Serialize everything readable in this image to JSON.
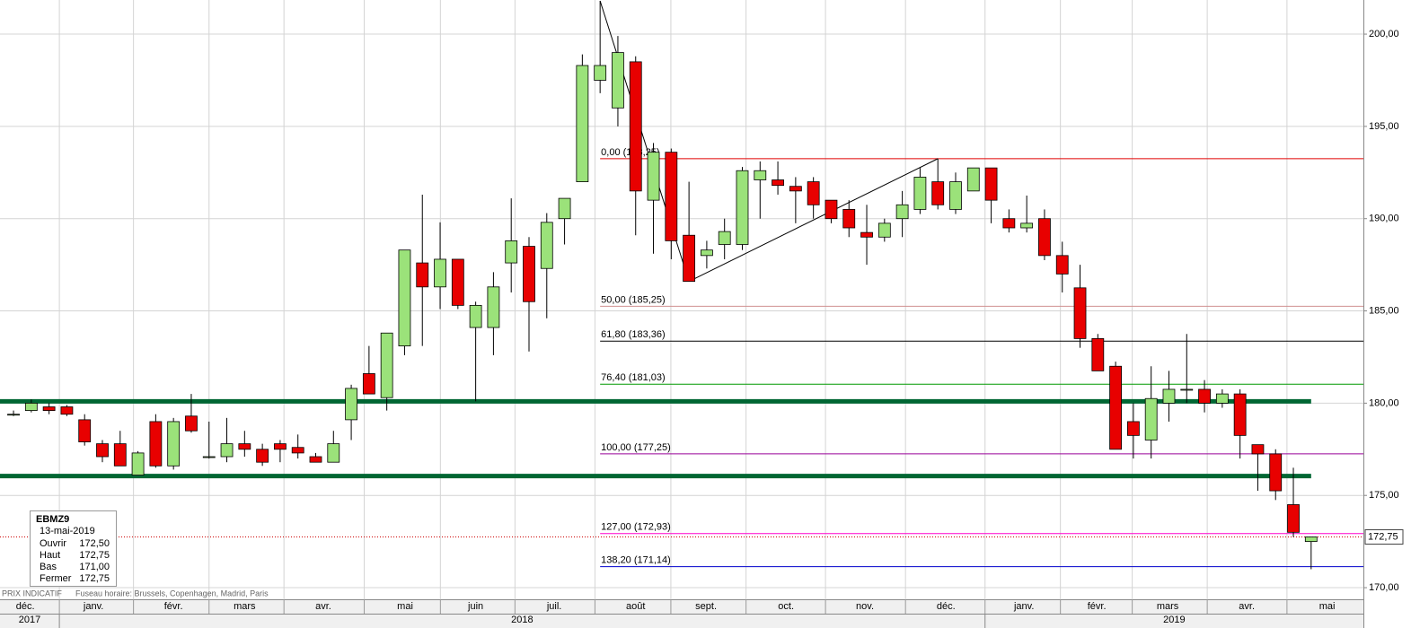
{
  "chart_data": {
    "type": "candlestick",
    "open": [
      179.4,
      179.6,
      179.8,
      179.8,
      179.1,
      177.8,
      177.8,
      176.1,
      179.0,
      176.6,
      179.3,
      177.1,
      177.1,
      177.8,
      177.5,
      177.8,
      177.6,
      177.1,
      176.8,
      179.1,
      181.6,
      180.3,
      183.1,
      187.6,
      186.3,
      187.8,
      184.1,
      184.1,
      187.6,
      188.5,
      187.3,
      190.0,
      192.0,
      197.5,
      196.0,
      198.5,
      191.0,
      193.6,
      189.1,
      188.0,
      188.6,
      188.6,
      192.1,
      192.1,
      191.75,
      192.0,
      191.0,
      190.5,
      189.25,
      189.0,
      190.0,
      190.5,
      192.0,
      190.5,
      191.5,
      192.75,
      190.0,
      189.5,
      190.0,
      188.0,
      186.25,
      183.5,
      182.0,
      179.0,
      178.0,
      180.0,
      180.75,
      180.75,
      180.0,
      180.5,
      177.75,
      177.25,
      174.5,
      172.5
    ],
    "high": [
      179.6,
      180.2,
      180.0,
      179.9,
      179.4,
      178.0,
      178.5,
      177.4,
      179.4,
      179.2,
      180.5,
      179.0,
      179.2,
      178.5,
      177.8,
      178.0,
      178.3,
      177.3,
      178.5,
      181.0,
      183.1,
      183.8,
      188.3,
      191.3,
      189.8,
      187.8,
      185.5,
      187.1,
      191.1,
      189.0,
      190.3,
      191.1,
      198.9,
      201.8,
      199.9,
      198.8,
      194.1,
      193.8,
      192.0,
      188.8,
      190.0,
      192.8,
      193.1,
      193.1,
      192.25,
      192.25,
      191.0,
      191.0,
      190.75,
      190.0,
      191.5,
      192.75,
      193.25,
      192.5,
      192.75,
      192.75,
      190.5,
      191.25,
      190.5,
      188.75,
      187.5,
      183.75,
      182.25,
      180.0,
      182.0,
      181.75,
      183.75,
      181.25,
      180.75,
      180.75,
      177.75,
      177.5,
      176.5,
      172.75
    ],
    "low": [
      179.3,
      179.5,
      179.4,
      179.3,
      177.7,
      176.8,
      176.6,
      176.1,
      176.5,
      176.4,
      178.4,
      177.0,
      176.8,
      177.1,
      176.6,
      176.8,
      177.0,
      176.8,
      176.8,
      178.0,
      180.5,
      179.6,
      182.6,
      183.1,
      185.1,
      185.1,
      180.1,
      182.6,
      186.0,
      182.8,
      184.6,
      188.6,
      192.0,
      196.8,
      195.0,
      189.1,
      188.1,
      187.8,
      186.6,
      187.3,
      187.8,
      188.3,
      190.0,
      191.3,
      189.75,
      190.0,
      189.75,
      189.0,
      187.5,
      188.75,
      189.0,
      190.25,
      190.5,
      190.25,
      191.5,
      189.75,
      189.25,
      189.25,
      187.75,
      186.0,
      183.0,
      181.75,
      177.5,
      177.0,
      177.0,
      179.0,
      180.0,
      179.5,
      179.75,
      177.0,
      175.25,
      174.75,
      172.75,
      171.0
    ],
    "close": [
      179.4,
      180.0,
      179.6,
      179.4,
      177.9,
      177.1,
      176.6,
      177.3,
      176.6,
      179.0,
      178.5,
      177.1,
      177.8,
      177.5,
      176.8,
      177.5,
      177.3,
      176.8,
      177.8,
      180.8,
      180.5,
      183.8,
      188.3,
      186.3,
      187.8,
      185.3,
      185.3,
      186.3,
      188.8,
      185.5,
      189.8,
      191.1,
      198.3,
      198.3,
      199.0,
      191.5,
      193.6,
      188.8,
      186.6,
      188.3,
      189.3,
      192.6,
      192.6,
      191.8,
      191.5,
      190.75,
      190.0,
      189.5,
      189.0,
      189.75,
      190.75,
      192.25,
      190.75,
      192.0,
      192.75,
      191.0,
      189.5,
      189.75,
      188.0,
      187.0,
      183.5,
      181.75,
      177.5,
      178.25,
      180.25,
      180.75,
      180.75,
      180.0,
      180.5,
      178.25,
      177.25,
      175.25,
      173.0,
      172.75
    ],
    "up_color": "#9be27a",
    "down_color": "#e80000",
    "xlim": [
      -0.76,
      75.94
    ],
    "ylim": [
      169.37,
      201.85
    ],
    "yticks": [
      {
        "value": 170,
        "label": "170,00"
      },
      {
        "value": 175,
        "label": "175,00"
      },
      {
        "value": 180,
        "label": "180,00"
      },
      {
        "value": 185,
        "label": "185,00"
      },
      {
        "value": 190,
        "label": "190,00"
      },
      {
        "value": 195,
        "label": "195,00"
      },
      {
        "value": 200,
        "label": "200,00"
      }
    ],
    "xticks": [
      {
        "value": 0.66,
        "label": "déc."
      },
      {
        "value": 4.5,
        "label": "janv."
      },
      {
        "value": 9.0,
        "label": "févr."
      },
      {
        "value": 13.0,
        "label": "mars"
      },
      {
        "value": 17.43,
        "label": "avr."
      },
      {
        "value": 22.03,
        "label": "mai"
      },
      {
        "value": 26.0,
        "label": "juin"
      },
      {
        "value": 30.42,
        "label": "juil."
      },
      {
        "value": 35.0,
        "label": "août"
      },
      {
        "value": 38.96,
        "label": "sept."
      },
      {
        "value": 43.46,
        "label": "oct."
      },
      {
        "value": 47.9,
        "label": "nov."
      },
      {
        "value": 52.46,
        "label": "déc."
      },
      {
        "value": 56.85,
        "label": "janv."
      },
      {
        "value": 60.94,
        "label": "févr."
      },
      {
        "value": 64.93,
        "label": "mars"
      },
      {
        "value": 69.38,
        "label": "avr."
      },
      {
        "value": 73.9,
        "label": "mai"
      }
    ],
    "years": [
      "2017",
      "2018",
      "2019"
    ],
    "grid": true,
    "fib_levels": [
      {
        "label": "0,00 (193,25)",
        "value": 193.25,
        "color": "#e00000"
      },
      {
        "label": "50,00 (185,25)",
        "value": 185.25,
        "color": "#d09090"
      },
      {
        "label": "61,80 (183,36)",
        "value": 183.36,
        "color": "#000000"
      },
      {
        "label": "76,40 (181,03)",
        "value": 181.03,
        "color": "#009900"
      },
      {
        "label": "100,00 (177,25)",
        "value": 177.25,
        "color": "#990099"
      },
      {
        "label": "127,00 (172,93)",
        "value": 172.93,
        "color": "#ff00cc"
      },
      {
        "label": "138,20 (171,14)",
        "value": 171.14,
        "color": "#0000cc"
      }
    ],
    "support_lines": {
      "values": [
        180.1,
        176.05
      ],
      "color": "#006633"
    },
    "last_price": {
      "value": 172.75,
      "label": "172,75",
      "color": "#cc0000"
    },
    "info": {
      "symbol": "EBMZ9",
      "date": "13-mai-2019",
      "rows": [
        [
          "Ouvrir",
          "172,50"
        ],
        [
          "Haut",
          "172,75"
        ],
        [
          "Bas",
          "171,00"
        ],
        [
          "Fermer",
          "172,75"
        ]
      ]
    },
    "footer": [
      "PRIX INDICATIF",
      "Fuseau horaire: Brussels, Copenhagen, Madrid, Paris"
    ]
  }
}
